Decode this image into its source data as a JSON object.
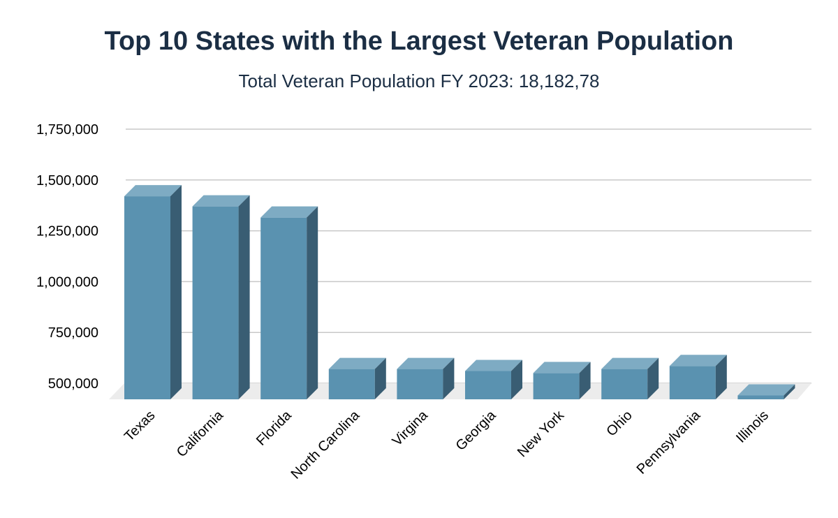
{
  "chart_data": {
    "type": "bar",
    "title": "Top 10 States with the Largest Veteran Population",
    "subtitle": "Total Veteran Population FY 2023: 18,182,78",
    "categories": [
      "Texas",
      "California",
      "Florida",
      "North Carolina",
      "Virgina",
      "Georgia",
      "New York",
      "Ohio",
      "Pennsylvania",
      "Illinois"
    ],
    "values": [
      1475000,
      1425000,
      1370000,
      625000,
      625000,
      615000,
      605000,
      625000,
      640000,
      495000
    ],
    "y_ticks": [
      "500,000",
      "750,000",
      "1,000,000",
      "1,250,000",
      "1,500,000",
      "1,750,000"
    ],
    "ylim": [
      500000,
      1750000
    ],
    "grid": true,
    "legend": "none",
    "bar_colors": {
      "front": "#5a92b0",
      "top": "#7eabc3",
      "side": "#395d73"
    }
  }
}
